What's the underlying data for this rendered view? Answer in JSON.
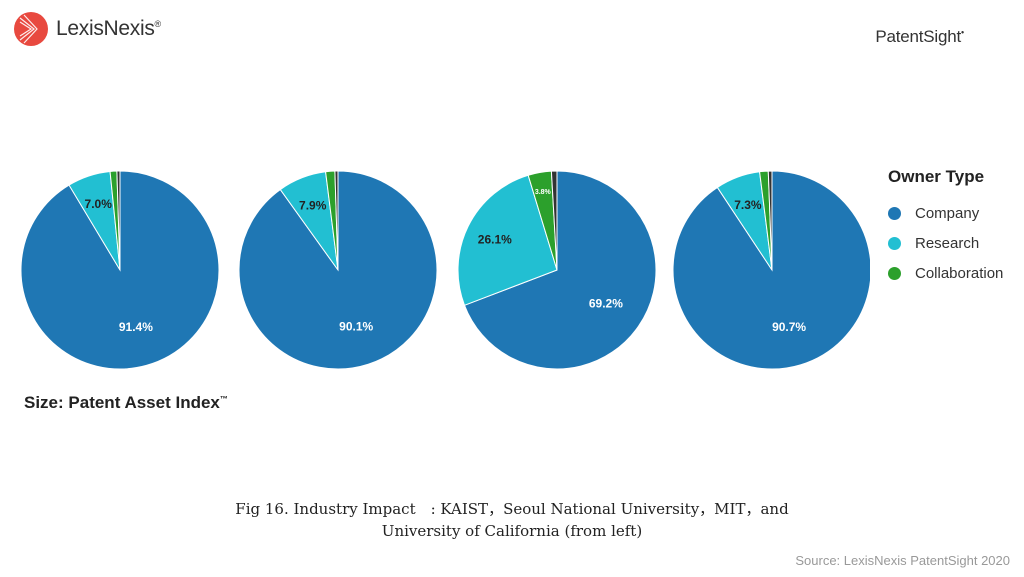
{
  "header": {
    "logo_left": "LexisNexis",
    "logo_left_icon": "lexisnexis-logo-icon",
    "logo_right": "PatentSight"
  },
  "chart_data": {
    "type": "pie",
    "charts": [
      {
        "labels": [
          "Company",
          "Research",
          "Collaboration",
          "Other"
        ],
        "values": [
          91.4,
          7.0,
          1.1,
          0.5
        ],
        "data_labels": [
          "91.4%",
          "7.0%",
          "",
          ""
        ]
      },
      {
        "labels": [
          "Company",
          "Research",
          "Collaboration",
          "Other"
        ],
        "values": [
          90.1,
          7.9,
          1.5,
          0.5
        ],
        "data_labels": [
          "90.1%",
          "7.9%",
          "",
          ""
        ]
      },
      {
        "labels": [
          "Company",
          "Research",
          "Collaboration",
          "Other"
        ],
        "values": [
          69.2,
          26.1,
          3.8,
          0.9
        ],
        "data_labels": [
          "69.2%",
          "26.1%",
          "3.8%",
          ""
        ]
      },
      {
        "labels": [
          "Company",
          "Research",
          "Collaboration",
          "Other"
        ],
        "values": [
          90.7,
          7.3,
          1.4,
          0.6
        ],
        "data_labels": [
          "90.7%",
          "7.3%",
          "",
          ""
        ]
      }
    ],
    "legend": {
      "title": "Owner Type",
      "placement": "right",
      "items": [
        {
          "name": "Company",
          "color": "#1f77b4"
        },
        {
          "name": "Research",
          "color": "#22bfd2"
        },
        {
          "name": "Collaboration",
          "color": "#2ca02c"
        }
      ]
    },
    "colors": {
      "Company": "#1f77b4",
      "Research": "#22bfd2",
      "Collaboration": "#2ca02c",
      "Other": "#333333"
    },
    "size_label": "Size:  Patent Asset Index",
    "size_label_tm": "™"
  },
  "caption": {
    "line1": "Fig 16. Industry Impact　: KAIST，Seoul National University，MIT，and",
    "line2": "University of California (from left)"
  },
  "source": "Source: LexisNexis PatentSight 2020"
}
